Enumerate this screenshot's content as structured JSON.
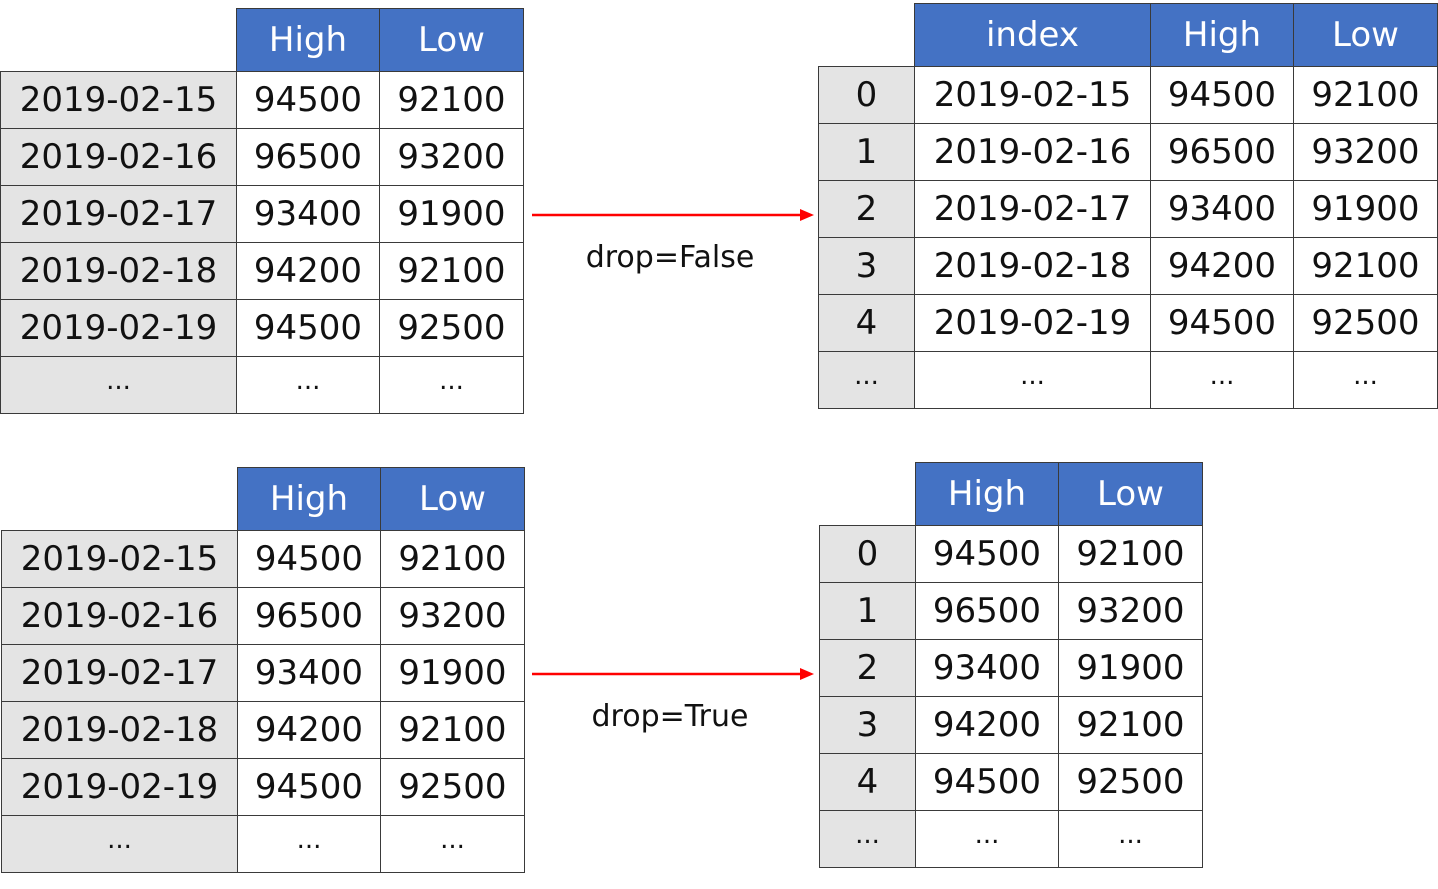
{
  "top_source": {
    "columns": [
      "High",
      "Low"
    ],
    "rows": [
      {
        "index": "2019-02-15",
        "high": "94500",
        "low": "92100"
      },
      {
        "index": "2019-02-16",
        "high": "96500",
        "low": "93200"
      },
      {
        "index": "2019-02-17",
        "high": "93400",
        "low": "91900"
      },
      {
        "index": "2019-02-18",
        "high": "94200",
        "low": "92100"
      },
      {
        "index": "2019-02-19",
        "high": "94500",
        "low": "92500"
      },
      {
        "index": "...",
        "high": "...",
        "low": "..."
      }
    ]
  },
  "top_result": {
    "columns": [
      "index",
      "High",
      "Low"
    ],
    "rows": [
      {
        "index": "0",
        "date": "2019-02-15",
        "high": "94500",
        "low": "92100"
      },
      {
        "index": "1",
        "date": "2019-02-16",
        "high": "96500",
        "low": "93200"
      },
      {
        "index": "2",
        "date": "2019-02-17",
        "high": "93400",
        "low": "91900"
      },
      {
        "index": "3",
        "date": "2019-02-18",
        "high": "94200",
        "low": "92100"
      },
      {
        "index": "4",
        "date": "2019-02-19",
        "high": "94500",
        "low": "92500"
      },
      {
        "index": "...",
        "date": "...",
        "high": "...",
        "low": "..."
      }
    ]
  },
  "bottom_source": {
    "columns": [
      "High",
      "Low"
    ],
    "rows": [
      {
        "index": "2019-02-15",
        "high": "94500",
        "low": "92100"
      },
      {
        "index": "2019-02-16",
        "high": "96500",
        "low": "93200"
      },
      {
        "index": "2019-02-17",
        "high": "93400",
        "low": "91900"
      },
      {
        "index": "2019-02-18",
        "high": "94200",
        "low": "92100"
      },
      {
        "index": "2019-02-19",
        "high": "94500",
        "low": "92500"
      },
      {
        "index": "...",
        "high": "...",
        "low": "..."
      }
    ]
  },
  "bottom_result": {
    "columns": [
      "High",
      "Low"
    ],
    "rows": [
      {
        "index": "0",
        "high": "94500",
        "low": "92100"
      },
      {
        "index": "1",
        "high": "96500",
        "low": "93200"
      },
      {
        "index": "2",
        "high": "93400",
        "low": "91900"
      },
      {
        "index": "3",
        "high": "94200",
        "low": "92100"
      },
      {
        "index": "4",
        "high": "94500",
        "low": "92500"
      },
      {
        "index": "...",
        "high": "...",
        "low": "..."
      }
    ]
  },
  "arrows": {
    "top_label": "drop=False",
    "bottom_label": "drop=True",
    "color": "#ff0000"
  },
  "colors": {
    "header_bg": "#4472c4",
    "index_bg": "#e4e4e4"
  }
}
